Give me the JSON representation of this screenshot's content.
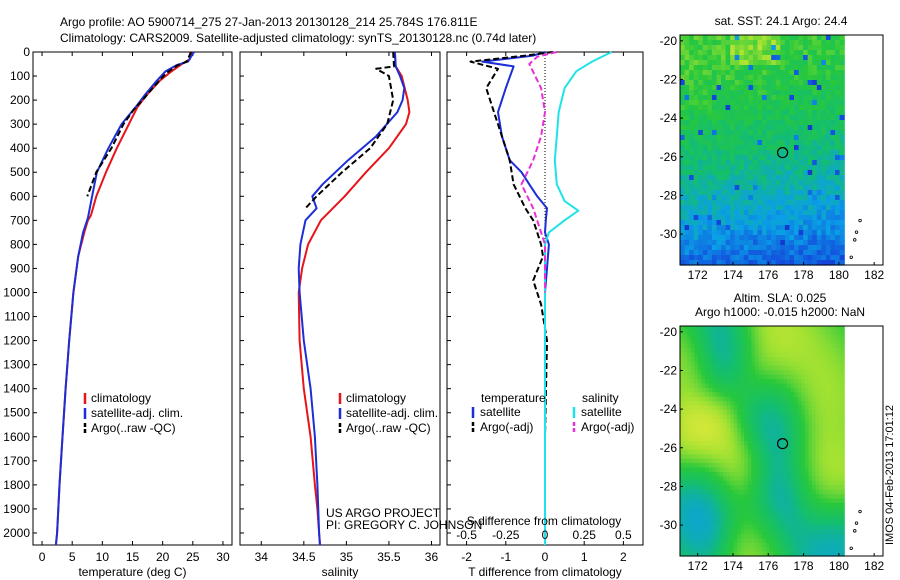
{
  "header": {
    "line1": "Argo profile: AO 5900714_275 27-Jan-2013 20130128_214 25.784S 176.811E",
    "line2": "Climatology: CARS2009. Satellite-adjusted climatology: synTS_20130128.nc (0.74d later)"
  },
  "colors": {
    "climatology": "#e8141a",
    "satellite": "#1c2ed6",
    "argo": "#000000",
    "satellite_salinity": "#1fe3e8",
    "argo_salinity": "#e830d8"
  },
  "depth_axis": {
    "range": [
      0,
      2050
    ],
    "ticks": [
      "0",
      "100",
      "200",
      "300",
      "400",
      "500",
      "600",
      "700",
      "800",
      "900",
      "1000",
      "1100",
      "1200",
      "1300",
      "1400",
      "1500",
      "1600",
      "1700",
      "1800",
      "1900",
      "2000"
    ],
    "inverted": true
  },
  "chart_data": [
    {
      "type": "line",
      "panel": "temperature",
      "xlabel": "temperature (deg C)",
      "xlim": [
        -1.5,
        31.5
      ],
      "xticks": [
        "0",
        "5",
        "10",
        "15",
        "20",
        "25",
        "30"
      ],
      "legend": {
        "placement": "lower-center",
        "entries": [
          "climatology",
          "satellite-adj. clim.",
          "Argo(..raw -QC)"
        ]
      },
      "series": [
        {
          "name": "climatology",
          "color": "#e8141a",
          "dash": "solid",
          "x": [
            24.8,
            24.5,
            23.2,
            21.5,
            19.5,
            17.3,
            15.8,
            14.4,
            12.4,
            10.6,
            9.0,
            8.1,
            7.6,
            7.0,
            6.0,
            5.2,
            4.5,
            3.9,
            3.4,
            2.9,
            2.5,
            2.3
          ],
          "y": [
            0,
            30,
            50,
            80,
            120,
            180,
            230,
            300,
            400,
            500,
            600,
            680,
            700,
            750,
            850,
            1000,
            1200,
            1400,
            1600,
            1800,
            2000,
            2050
          ]
        },
        {
          "name": "satellite-adj. clim.",
          "color": "#1c2ed6",
          "dash": "solid",
          "x": [
            25.2,
            24.2,
            22.3,
            20.5,
            19.0,
            17.0,
            15.5,
            13.2,
            11.0,
            9.1,
            8.3,
            7.6,
            6.8,
            6.0,
            5.2,
            4.5,
            3.9,
            3.4,
            2.9,
            2.5,
            2.3
          ],
          "y": [
            0,
            40,
            55,
            80,
            120,
            180,
            230,
            300,
            400,
            500,
            600,
            690,
            750,
            850,
            1000,
            1200,
            1400,
            1600,
            1800,
            2000,
            2050
          ]
        },
        {
          "name": "Argo(..raw -QC)",
          "color": "#000000",
          "dash": "dashed",
          "x": [
            24.7,
            24.0,
            22.5,
            20.5,
            18.7,
            17.0,
            15.2,
            13.5,
            11.5,
            9.0,
            7.5
          ],
          "y": [
            0,
            40,
            55,
            90,
            140,
            190,
            240,
            300,
            400,
            500,
            600
          ]
        }
      ]
    },
    {
      "type": "line",
      "panel": "salinity",
      "xlabel": "salinity",
      "xlim": [
        33.75,
        36.1
      ],
      "xticks": [
        "34",
        "34.5",
        "35",
        "35.5",
        "36"
      ],
      "legend": {
        "placement": "lower-center",
        "entries": [
          "climatology",
          "satellite-adj. clim.",
          "Argo(..raw -QC)"
        ]
      },
      "series": [
        {
          "name": "climatology",
          "color": "#e8141a",
          "dash": "solid",
          "x": [
            35.57,
            35.58,
            35.65,
            35.72,
            35.74,
            35.7,
            35.5,
            35.23,
            34.98,
            34.7,
            34.55,
            34.48,
            34.44,
            34.45,
            34.5,
            34.58,
            34.63,
            34.66,
            34.68,
            34.69
          ],
          "y": [
            0,
            60,
            100,
            200,
            250,
            300,
            400,
            500,
            600,
            700,
            800,
            900,
            1000,
            1200,
            1400,
            1600,
            1800,
            1900,
            2000,
            2050
          ]
        },
        {
          "name": "satellite-adj. clim.",
          "color": "#1c2ed6",
          "dash": "solid",
          "x": [
            35.57,
            35.58,
            35.63,
            35.68,
            35.66,
            35.6,
            35.35,
            35.02,
            34.72,
            34.6,
            34.65,
            34.52,
            34.46,
            34.44,
            34.45,
            34.5,
            34.58,
            34.63,
            34.66,
            34.68,
            34.69
          ],
          "y": [
            0,
            60,
            100,
            150,
            200,
            250,
            350,
            450,
            550,
            600,
            650,
            700,
            800,
            900,
            1000,
            1200,
            1400,
            1600,
            1800,
            2000,
            2050
          ]
        },
        {
          "name": "Argo(..raw -QC)",
          "color": "#000000",
          "dash": "dashed",
          "x": [
            35.55,
            35.56,
            35.35,
            35.5,
            35.55,
            35.48,
            35.28,
            34.95,
            34.65,
            34.52
          ],
          "y": [
            0,
            60,
            70,
            100,
            200,
            300,
            400,
            500,
            600,
            650
          ]
        }
      ]
    },
    {
      "type": "line",
      "panel": "difference",
      "xlabel": "T difference from climatology",
      "xlabel_top": "S difference from climatology",
      "xlim": [
        -2.5,
        2.5
      ],
      "xticks": [
        "-2",
        "-1",
        "0",
        "1",
        "2"
      ],
      "xticks_top": [
        "-0.5",
        "-0.25",
        "0",
        "0.25",
        "0.5"
      ],
      "legend": {
        "placement": "lower-center",
        "headers": [
          "temperature",
          "salinity"
        ],
        "entries": [
          "satellite",
          "Argo(-adj)",
          "satellite",
          "Argo(-adj)"
        ]
      },
      "series": [
        {
          "name": "satellite",
          "group": "temperature",
          "color": "#1c2ed6",
          "dash": "solid",
          "x": [
            0,
            -0.3,
            -1.6,
            -0.8,
            -1.0,
            -1.2,
            -1.1,
            -0.9,
            -0.6,
            -0.4,
            -0.2,
            0.05,
            0.02,
            0,
            0.1,
            0.05,
            0,
            0,
            0,
            0
          ],
          "y": [
            0,
            15,
            40,
            60,
            150,
            250,
            350,
            450,
            500,
            550,
            600,
            650,
            700,
            750,
            800,
            900,
            1000,
            1200,
            1600,
            2050
          ]
        },
        {
          "name": "Argo(-adj)",
          "group": "temperature",
          "color": "#000000",
          "dash": "dashed",
          "x": [
            0.2,
            -0.5,
            -1.9,
            -1.2,
            -1.5,
            -1.3,
            -1.1,
            -0.9,
            -0.8,
            -0.5,
            -0.3,
            -0.2,
            -0.1,
            -0.05,
            -0.3,
            -0.1,
            0.05,
            0
          ],
          "y": [
            0,
            15,
            40,
            70,
            150,
            250,
            350,
            450,
            550,
            650,
            700,
            750,
            800,
            850,
            950,
            1050,
            1200,
            1600
          ]
        },
        {
          "name": "satellite",
          "group": "salinity",
          "color": "#1fe3e8",
          "dash": "solid",
          "x": [
            1.7,
            1.2,
            0.8,
            0.5,
            0.35,
            0.3,
            0.25,
            0.3,
            0.5,
            0.85,
            0.5,
            0.1,
            0,
            0,
            0
          ],
          "y": [
            0,
            40,
            80,
            150,
            250,
            350,
            450,
            550,
            620,
            660,
            700,
            750,
            800,
            1200,
            2050
          ]
        },
        {
          "name": "Argo(-adj)",
          "group": "salinity",
          "color": "#e830d8",
          "dash": "dashed",
          "x": [
            0.3,
            -0.2,
            -0.4,
            -0.1,
            0,
            -0.1,
            -0.3,
            -0.6,
            -0.3,
            -0.1,
            0,
            0
          ],
          "y": [
            0,
            20,
            50,
            150,
            250,
            350,
            450,
            550,
            650,
            750,
            800,
            1000
          ]
        }
      ]
    },
    {
      "type": "heatmap",
      "panel": "sst-map",
      "title": "sat. SST: 24.1  Argo: 24.4",
      "xlim": [
        171,
        182.5
      ],
      "ylim": [
        -31.6,
        -19.7
      ],
      "xticks": [
        "172",
        "174",
        "176",
        "178",
        "180",
        "182"
      ],
      "yticks": [
        "-20",
        "-22",
        "-24",
        "-26",
        "-28",
        "-30"
      ],
      "marker": {
        "lon": 176.811,
        "lat": -25.784
      }
    },
    {
      "type": "heatmap",
      "panel": "sla-map",
      "title_line1": "Altim. SLA: 0.025",
      "title_line2": "Argo h1000: -0.015 h2000: NaN",
      "xlim": [
        171,
        182.5
      ],
      "ylim": [
        -31.6,
        -19.7
      ],
      "xticks": [
        "172",
        "174",
        "176",
        "178",
        "180",
        "182"
      ],
      "yticks": [
        "-20",
        "-22",
        "-24",
        "-26",
        "-28",
        "-30"
      ],
      "marker": {
        "lon": 176.811,
        "lat": -25.784
      }
    }
  ],
  "annotations": {
    "project_line1": "US ARGO PROJECT",
    "project_line2": "PI: GREGORY C. JOHNSON",
    "imos_stamp": "IMOS 04-Feb-2013 17:01:12"
  }
}
